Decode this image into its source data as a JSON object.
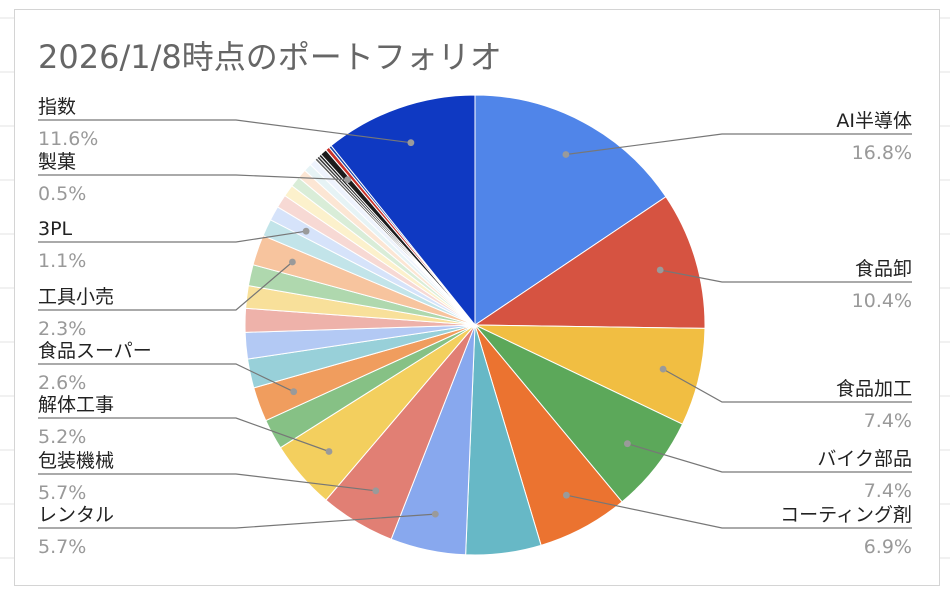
{
  "chart_data": {
    "type": "pie",
    "title": "2026/1/8時点のポートフォリオ",
    "slices": [
      {
        "label": "AI半導体",
        "value": 16.8,
        "value_label": "16.8%",
        "color": "#5085E9",
        "labeled": true
      },
      {
        "label": "食品卸",
        "value": 10.4,
        "value_label": "10.4%",
        "color": "#D65341",
        "labeled": true
      },
      {
        "label": "食品加工",
        "value": 7.4,
        "value_label": "7.4%",
        "color": "#F1BE42",
        "labeled": true
      },
      {
        "label": "バイク部品",
        "value": 7.4,
        "value_label": "7.4%",
        "color": "#5CA85A",
        "labeled": true
      },
      {
        "label": "コーティング剤",
        "value": 6.9,
        "value_label": "6.9%",
        "color": "#EB7330",
        "labeled": true
      },
      {
        "label": "",
        "value": 5.7,
        "value_label": "",
        "color": "#67B8C6",
        "labeled": false
      },
      {
        "label": "レンタル",
        "value": 5.7,
        "value_label": "5.7%",
        "color": "#88A8EE",
        "labeled": true
      },
      {
        "label": "包装機械",
        "value": 5.7,
        "value_label": "5.7%",
        "color": "#E17F74",
        "labeled": true
      },
      {
        "label": "解体工事",
        "value": 5.2,
        "value_label": "5.2%",
        "color": "#F3CF5E",
        "labeled": true
      },
      {
        "label": "",
        "value": 2.3,
        "value_label": "",
        "color": "#86C185",
        "labeled": false
      },
      {
        "label": "食品スーパー",
        "value": 2.6,
        "value_label": "2.6%",
        "color": "#F09D5E",
        "labeled": true
      },
      {
        "label": "",
        "value": 2.2,
        "value_label": "",
        "color": "#98D0D9",
        "labeled": false
      },
      {
        "label": "",
        "value": 2.0,
        "value_label": "",
        "color": "#B3C9F4",
        "labeled": false
      },
      {
        "label": "",
        "value": 1.8,
        "value_label": "",
        "color": "#EEB2AA",
        "labeled": false
      },
      {
        "label": "",
        "value": 1.7,
        "value_label": "",
        "color": "#F8E09A",
        "labeled": false
      },
      {
        "label": "",
        "value": 1.6,
        "value_label": "",
        "color": "#AFD8AE",
        "labeled": false
      },
      {
        "label": "工具小売",
        "value": 2.3,
        "value_label": "2.3%",
        "color": "#F7C49E",
        "labeled": true
      },
      {
        "label": "",
        "value": 1.3,
        "value_label": "",
        "color": "#C2E4E9",
        "labeled": false
      },
      {
        "label": "3PL",
        "value": 1.1,
        "value_label": "1.1%",
        "color": "#D6E3FA",
        "labeled": true
      },
      {
        "label": "",
        "value": 1.0,
        "value_label": "",
        "color": "#F7D9D4",
        "labeled": false
      },
      {
        "label": "",
        "value": 0.9,
        "value_label": "",
        "color": "#FCF1CC",
        "labeled": false
      },
      {
        "label": "",
        "value": 0.8,
        "value_label": "",
        "color": "#D9EDD8",
        "labeled": false
      },
      {
        "label": "",
        "value": 0.7,
        "value_label": "",
        "color": "#FCE6D4",
        "labeled": false
      },
      {
        "label": "",
        "value": 0.6,
        "value_label": "",
        "color": "#E6F3F5",
        "labeled": false
      },
      {
        "label": "",
        "value": 0.5,
        "value_label": "",
        "color": "#EEF3FD",
        "labeled": false
      },
      {
        "label": "",
        "value": 0.2,
        "value_label": "",
        "color": "#5E5E5E",
        "labeled": false
      },
      {
        "label": "",
        "value": 0.2,
        "value_label": "",
        "color": "#3F3F3F",
        "labeled": false
      },
      {
        "label": "",
        "value": 0.2,
        "value_label": "",
        "color": "#1F1F1F",
        "labeled": false
      },
      {
        "label": "製菓",
        "value": 0.5,
        "value_label": "0.5%",
        "color": "#1C1C1C",
        "labeled": true
      },
      {
        "label": "",
        "value": 0.3,
        "value_label": "",
        "color": "#C9322A",
        "labeled": false
      },
      {
        "label": "",
        "value": 0.2,
        "value_label": "",
        "color": "#1B47A8",
        "labeled": false
      },
      {
        "label": "指数",
        "value": 11.6,
        "value_label": "11.6%",
        "color": "#0F39C2",
        "labeled": true
      }
    ],
    "legend": "none",
    "label_position": "outside with leader lines",
    "colors": {
      "title": "#666666",
      "label": "#222222",
      "percent": "#999999",
      "leader_line": "#777777",
      "frame": "#d4d4d4",
      "background": "#ffffff",
      "grid_line": "#e3e3e3"
    }
  }
}
